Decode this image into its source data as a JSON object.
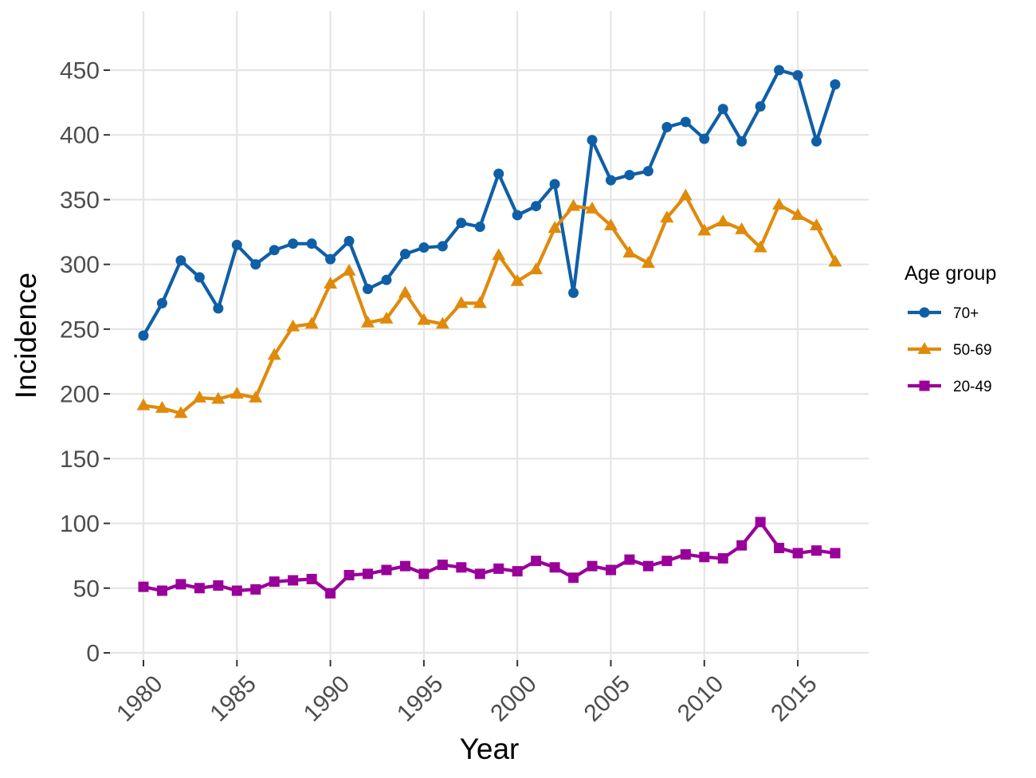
{
  "chart_data": {
    "type": "line",
    "title": "",
    "xlabel": "Year",
    "ylabel": "Incidence",
    "xlim": [
      1980,
      2017
    ],
    "ylim": [
      0,
      450
    ],
    "x_ticks": [
      1980,
      1985,
      1990,
      1995,
      2000,
      2005,
      2010,
      2015
    ],
    "y_ticks": [
      0,
      50,
      100,
      150,
      200,
      250,
      300,
      350,
      400,
      450
    ],
    "grid": true,
    "legend": {
      "title": "Age group",
      "placement": "right"
    },
    "x": [
      1980,
      1981,
      1982,
      1983,
      1984,
      1985,
      1986,
      1987,
      1988,
      1989,
      1990,
      1991,
      1992,
      1993,
      1994,
      1995,
      1996,
      1997,
      1998,
      1999,
      2000,
      2001,
      2002,
      2003,
      2004,
      2005,
      2006,
      2007,
      2008,
      2009,
      2010,
      2011,
      2012,
      2013,
      2014,
      2015,
      2016,
      2017
    ],
    "series": [
      {
        "name": "70+",
        "color": "#0F5FA6",
        "marker": "circle",
        "values": [
          245,
          270,
          303,
          290,
          266,
          315,
          300,
          311,
          316,
          316,
          304,
          318,
          281,
          288,
          308,
          313,
          314,
          332,
          329,
          370,
          338,
          345,
          362,
          278,
          396,
          365,
          369,
          372,
          406,
          410,
          397,
          420,
          395,
          422,
          450,
          446,
          395,
          439
        ]
      },
      {
        "name": "50-69",
        "color": "#E08A0B",
        "marker": "triangle",
        "values": [
          191,
          189,
          185,
          197,
          196,
          200,
          197,
          230,
          252,
          254,
          285,
          295,
          255,
          258,
          278,
          257,
          254,
          270,
          270,
          307,
          287,
          296,
          328,
          345,
          343,
          330,
          309,
          301,
          336,
          353,
          326,
          333,
          327,
          313,
          346,
          338,
          330,
          302
        ]
      },
      {
        "name": "20-49",
        "color": "#990099",
        "marker": "square",
        "values": [
          51,
          48,
          53,
          50,
          52,
          48,
          49,
          55,
          56,
          57,
          46,
          60,
          61,
          64,
          67,
          61,
          68,
          66,
          61,
          65,
          63,
          71,
          66,
          58,
          67,
          64,
          72,
          67,
          71,
          76,
          74,
          73,
          83,
          101,
          81,
          77,
          79,
          77
        ]
      }
    ]
  }
}
